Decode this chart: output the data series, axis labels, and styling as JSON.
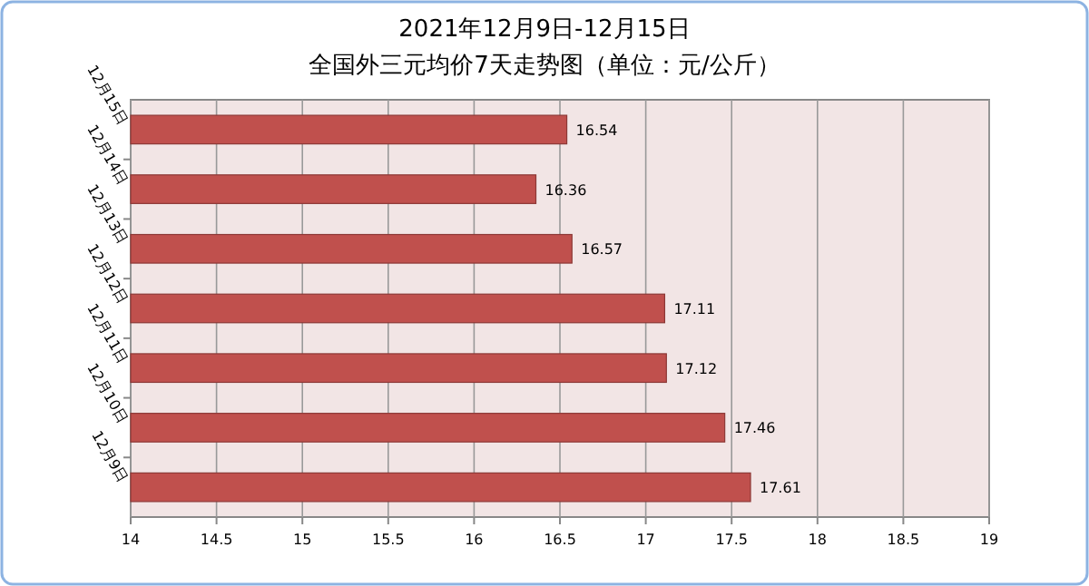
{
  "chart_data": {
    "type": "bar",
    "orientation": "horizontal",
    "title": "2021年12月9日-12月15日",
    "subtitle": "全国外三元均价7天走势图（单位：元/公斤）",
    "categories": [
      "12月15日",
      "12月14日",
      "12月13日",
      "12月12日",
      "12月11日",
      "12月10日",
      "12月9日"
    ],
    "values": [
      16.54,
      16.36,
      16.57,
      17.11,
      17.12,
      17.46,
      17.61
    ],
    "color": "#c0504d",
    "xlim": [
      14,
      19
    ],
    "xticks": [
      14,
      14.5,
      15,
      15.5,
      16,
      16.5,
      17,
      17.5,
      18,
      18.5,
      19
    ],
    "grid": "x",
    "data_labels": true
  }
}
